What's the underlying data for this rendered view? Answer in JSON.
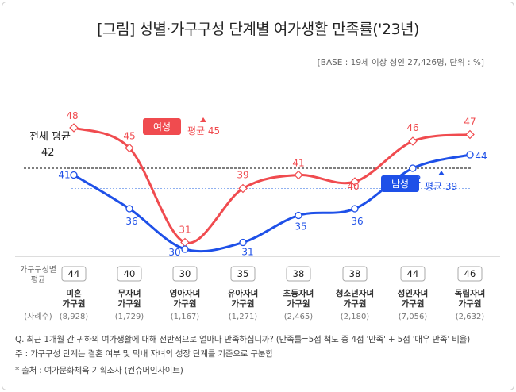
{
  "title": "[그림] 성별·가구구성 단계별 여가생활 만족률('23년)",
  "base_note": "[BASE : 19세 이상 성인 27,426명, 단위 : %]",
  "chart_data": {
    "type": "line",
    "categories": [
      "미혼\n가구원",
      "무자녀\n가구원",
      "영아자녀\n가구원",
      "유아자녀\n가구원",
      "초등자녀\n가구원",
      "청소년자녀\n가구원",
      "성인자녀\n가구원",
      "독립자녀\n가구원"
    ],
    "series": [
      {
        "name": "여성",
        "values": [
          48,
          45,
          31,
          39,
          41,
          40,
          46,
          47
        ],
        "color": "#f04b4f",
        "average": 45,
        "average_label": "평균 45"
      },
      {
        "name": "남성",
        "values": [
          41,
          36,
          30,
          31,
          35,
          36,
          42,
          44
        ],
        "color": "#1e50e8",
        "average": 39,
        "average_label": "평균 39"
      }
    ],
    "overall_average": 42,
    "overall_average_label": "전체 평균",
    "household_avg_label": "가구구성별\n평균",
    "household_avg": [
      44,
      40,
      30,
      35,
      38,
      38,
      44,
      46
    ],
    "sample_label": "(사례수)",
    "sample_sizes": [
      "(8,928)",
      "(1,729)",
      "(1,167)",
      "(1,271)",
      "(2,465)",
      "(2,180)",
      "(7,056)",
      "(2,632)"
    ],
    "ylim": [
      28,
      50
    ],
    "colors": {
      "female": "#f04b4f",
      "male": "#1e50e8",
      "overall": "#222222"
    }
  },
  "footnotes": {
    "question": "Q. 최근 1개월 간 귀하의 여가생활에 대해 전반적으로 얼마나 만족하십니까? (만족률=5점 척도 중 4점 '만족' + 5점 '매우 만족' 비율)",
    "note": "주 : 가구구성 단계는 결혼 여부 및 막내 자녀의 성장 단계를 기준으로 구분함",
    "source": "* 출처 : 여가문화체육 기획조사 (컨슈머인사이트)"
  }
}
